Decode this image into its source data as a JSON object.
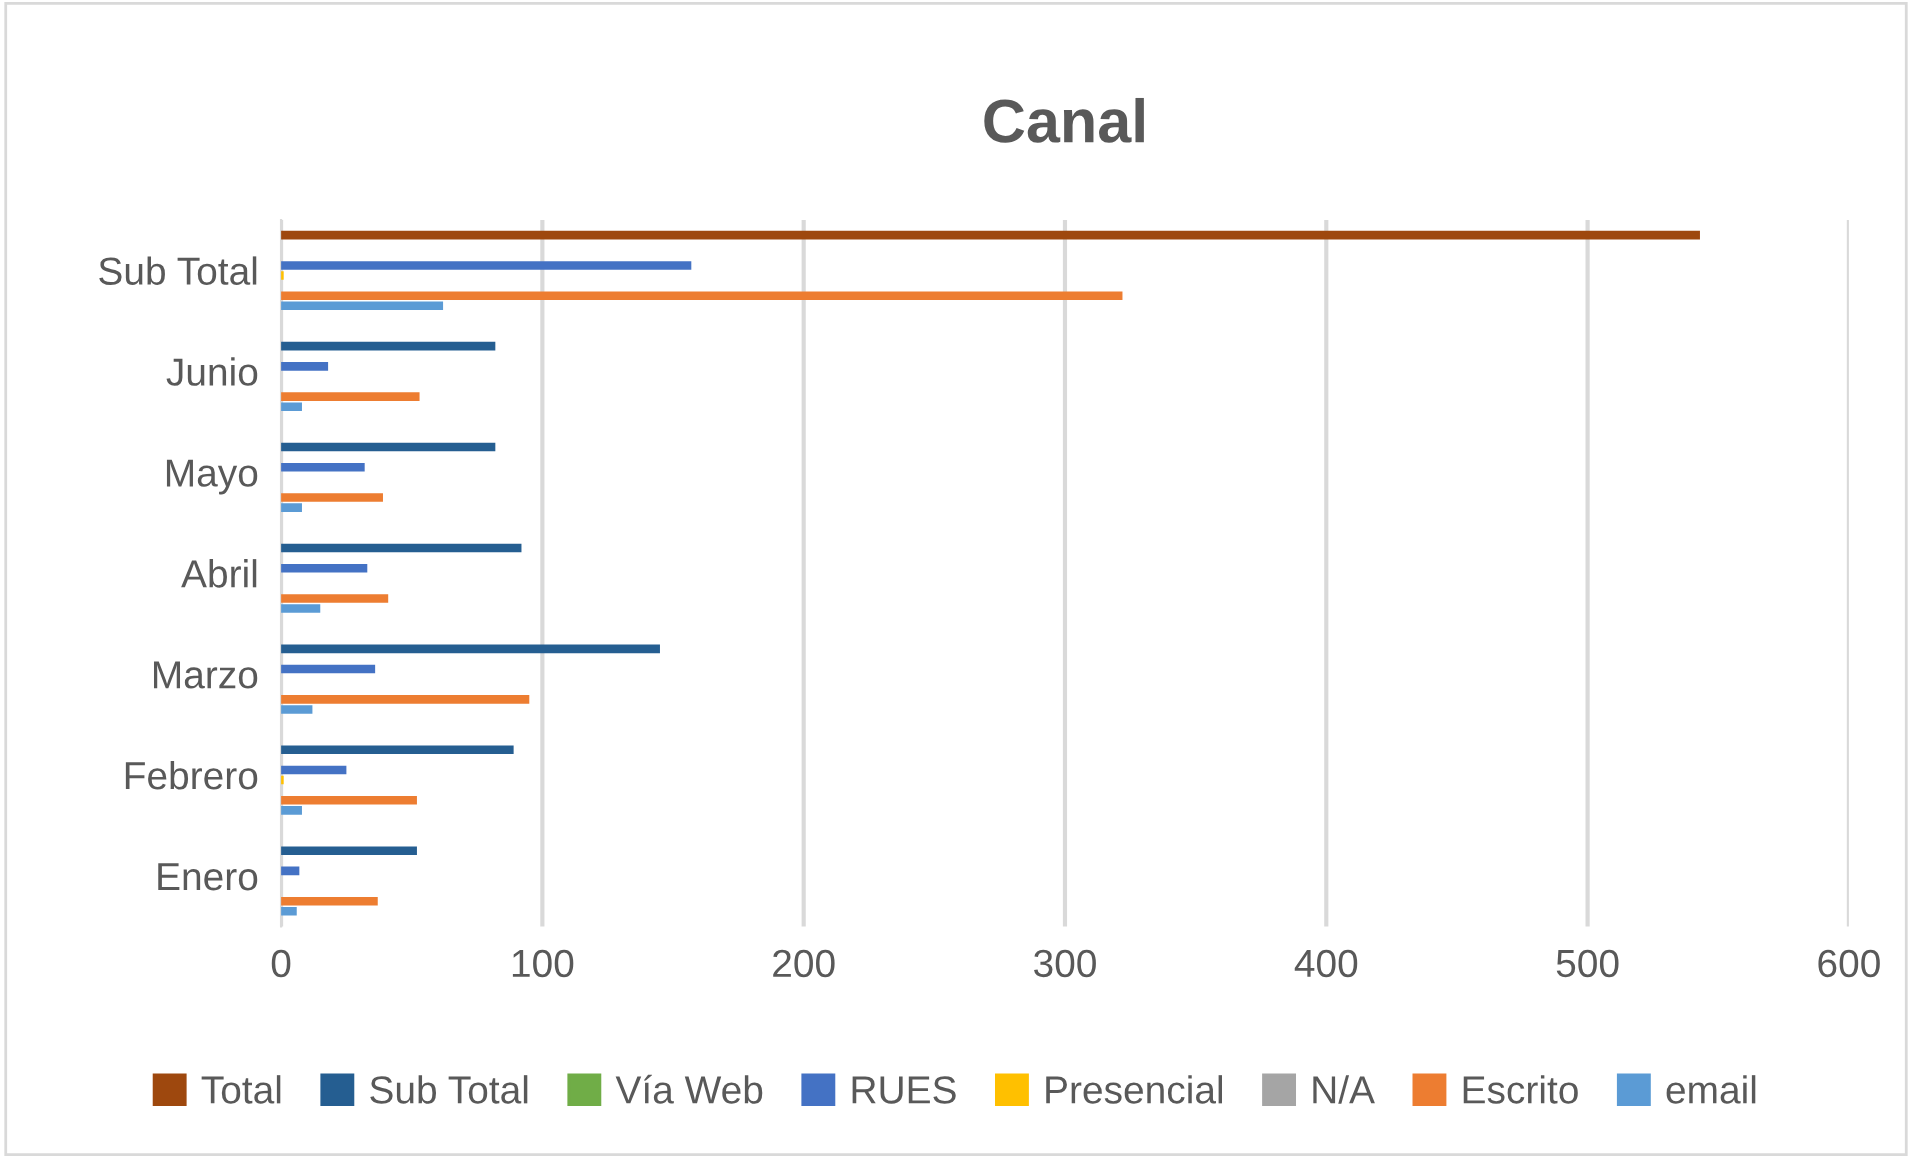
{
  "chart_data": {
    "type": "bar",
    "orientation": "horizontal",
    "title": "Canal",
    "categories": [
      "Sub Total",
      "Junio",
      "Mayo",
      "Abril",
      "Marzo",
      "Febrero",
      "Enero"
    ],
    "series": [
      {
        "name": "Total",
        "color": "#9e480e",
        "values": [
          543,
          null,
          null,
          null,
          null,
          null,
          null
        ]
      },
      {
        "name": "Sub Total",
        "color": "#255e91",
        "values": [
          null,
          82,
          82,
          92,
          145,
          89,
          52
        ]
      },
      {
        "name": "Vía Web",
        "color": "#70ad47",
        "values": [
          0,
          0,
          0,
          0,
          0,
          0,
          0
        ]
      },
      {
        "name": "RUES",
        "color": "#4472c4",
        "values": [
          157,
          18,
          32,
          33,
          36,
          25,
          7
        ]
      },
      {
        "name": "Presencial",
        "color": "#ffc000",
        "values": [
          1,
          0,
          0,
          0,
          0,
          1,
          0
        ]
      },
      {
        "name": "N/A",
        "color": "#a5a5a5",
        "values": [
          0,
          0,
          0,
          0,
          0,
          0,
          0
        ]
      },
      {
        "name": "Escrito",
        "color": "#ed7d31",
        "values": [
          322,
          53,
          39,
          41,
          95,
          52,
          37
        ]
      },
      {
        "name": "email",
        "color": "#5b9bd5",
        "values": [
          62,
          8,
          8,
          15,
          12,
          8,
          6
        ]
      }
    ],
    "xlim": [
      0,
      600
    ],
    "xticks": [
      0,
      100,
      200,
      300,
      400,
      500,
      600
    ],
    "grid": "x",
    "legend": "bottom"
  }
}
